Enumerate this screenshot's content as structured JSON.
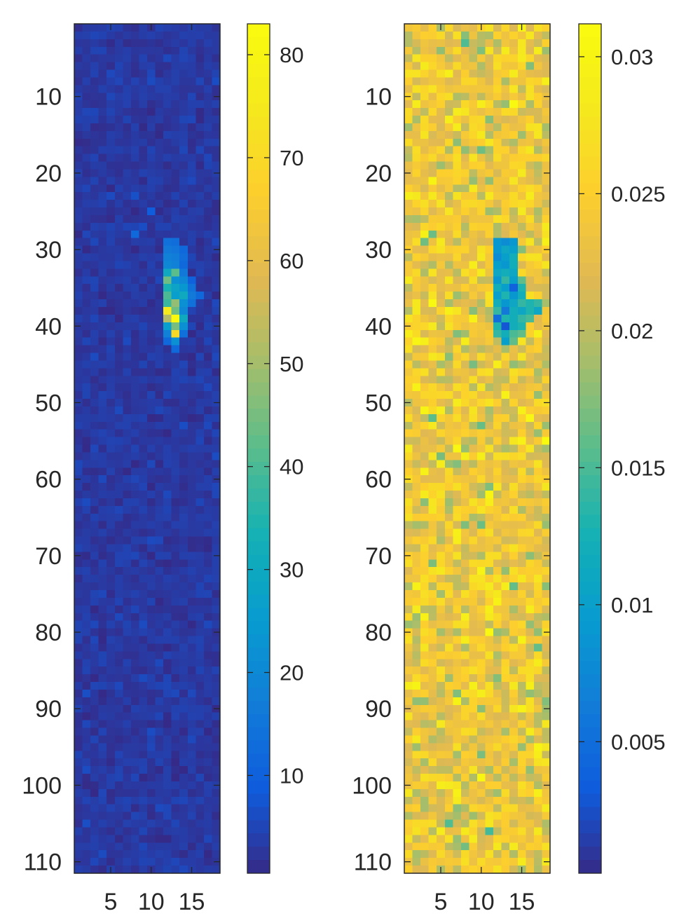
{
  "chart_data": [
    {
      "type": "heatmap",
      "title": "",
      "xlabel": "",
      "ylabel": "",
      "colormap": "parula",
      "xlim": [
        0.5,
        18.5
      ],
      "ylim": [
        0.5,
        111.5
      ],
      "y_reversed": true,
      "grid": false,
      "xticks": [
        "5",
        "10",
        "15"
      ],
      "yticks": [
        "10",
        "20",
        "30",
        "40",
        "50",
        "60",
        "70",
        "80",
        "90",
        "100",
        "110"
      ],
      "colorbar": {
        "position": "right",
        "clim": [
          0.5,
          83
        ],
        "ticks": [
          "10",
          "20",
          "30",
          "40",
          "50",
          "60",
          "70",
          "80"
        ]
      },
      "background": {
        "value": 3,
        "noise": 1.2
      },
      "hotspot": [
        {
          "x": 12,
          "y": 29,
          "v": 14
        },
        {
          "x": 13,
          "y": 29,
          "v": 13
        },
        {
          "x": 12,
          "y": 30,
          "v": 16
        },
        {
          "x": 13,
          "y": 30,
          "v": 15
        },
        {
          "x": 14,
          "y": 30,
          "v": 12
        },
        {
          "x": 12,
          "y": 31,
          "v": 18
        },
        {
          "x": 13,
          "y": 31,
          "v": 17
        },
        {
          "x": 14,
          "y": 31,
          "v": 13
        },
        {
          "x": 12,
          "y": 32,
          "v": 20
        },
        {
          "x": 13,
          "y": 32,
          "v": 18
        },
        {
          "x": 14,
          "y": 32,
          "v": 12
        },
        {
          "x": 12,
          "y": 33,
          "v": 30
        },
        {
          "x": 13,
          "y": 33,
          "v": 42
        },
        {
          "x": 14,
          "y": 33,
          "v": 16
        },
        {
          "x": 12,
          "y": 34,
          "v": 44
        },
        {
          "x": 13,
          "y": 34,
          "v": 22
        },
        {
          "x": 14,
          "y": 34,
          "v": 20
        },
        {
          "x": 15,
          "y": 34,
          "v": 10
        },
        {
          "x": 12,
          "y": 35,
          "v": 34
        },
        {
          "x": 13,
          "y": 35,
          "v": 28
        },
        {
          "x": 14,
          "y": 35,
          "v": 24
        },
        {
          "x": 15,
          "y": 35,
          "v": 14
        },
        {
          "x": 12,
          "y": 36,
          "v": 40
        },
        {
          "x": 13,
          "y": 36,
          "v": 26
        },
        {
          "x": 14,
          "y": 36,
          "v": 30
        },
        {
          "x": 15,
          "y": 36,
          "v": 16
        },
        {
          "x": 16,
          "y": 36,
          "v": 12
        },
        {
          "x": 12,
          "y": 37,
          "v": 38
        },
        {
          "x": 13,
          "y": 37,
          "v": 48
        },
        {
          "x": 14,
          "y": 37,
          "v": 22
        },
        {
          "x": 15,
          "y": 37,
          "v": 14
        },
        {
          "x": 12,
          "y": 38,
          "v": 75
        },
        {
          "x": 13,
          "y": 38,
          "v": 44
        },
        {
          "x": 14,
          "y": 38,
          "v": 20
        },
        {
          "x": 12,
          "y": 39,
          "v": 52
        },
        {
          "x": 13,
          "y": 39,
          "v": 82
        },
        {
          "x": 14,
          "y": 39,
          "v": 30
        },
        {
          "x": 12,
          "y": 40,
          "v": 26
        },
        {
          "x": 13,
          "y": 40,
          "v": 45
        },
        {
          "x": 14,
          "y": 40,
          "v": 22
        },
        {
          "x": 12,
          "y": 41,
          "v": 18
        },
        {
          "x": 13,
          "y": 41,
          "v": 70
        },
        {
          "x": 14,
          "y": 41,
          "v": 14
        },
        {
          "x": 12,
          "y": 42,
          "v": 12
        },
        {
          "x": 13,
          "y": 42,
          "v": 22
        },
        {
          "x": 13,
          "y": 43,
          "v": 12
        },
        {
          "x": 8,
          "y": 28,
          "v": 12
        },
        {
          "x": 10,
          "y": 25,
          "v": 9
        }
      ]
    },
    {
      "type": "heatmap",
      "title": "",
      "xlabel": "",
      "ylabel": "",
      "colormap": "parula",
      "xlim": [
        0.5,
        18.5
      ],
      "ylim": [
        0.5,
        111.5
      ],
      "y_reversed": true,
      "grid": false,
      "xticks": [
        "5",
        "10",
        "15"
      ],
      "yticks": [
        "10",
        "20",
        "30",
        "40",
        "50",
        "60",
        "70",
        "80",
        "90",
        "100",
        "110"
      ],
      "colorbar": {
        "position": "right",
        "clim": [
          0.0002,
          0.0312
        ],
        "ticks": [
          "0.005",
          "0.01",
          "0.015",
          "0.02",
          "0.025",
          "0.03"
        ]
      },
      "background": {
        "value": 0.0235,
        "noise": 0.0028
      },
      "hotspot": [
        {
          "x": 12,
          "y": 29,
          "v": 0.009
        },
        {
          "x": 13,
          "y": 29,
          "v": 0.008
        },
        {
          "x": 14,
          "y": 29,
          "v": 0.009
        },
        {
          "x": 12,
          "y": 30,
          "v": 0.009
        },
        {
          "x": 13,
          "y": 30,
          "v": 0.011
        },
        {
          "x": 14,
          "y": 30,
          "v": 0.01
        },
        {
          "x": 12,
          "y": 31,
          "v": 0.008
        },
        {
          "x": 13,
          "y": 31,
          "v": 0.01
        },
        {
          "x": 14,
          "y": 31,
          "v": 0.012
        },
        {
          "x": 12,
          "y": 32,
          "v": 0.01
        },
        {
          "x": 13,
          "y": 32,
          "v": 0.009
        },
        {
          "x": 14,
          "y": 32,
          "v": 0.012
        },
        {
          "x": 12,
          "y": 33,
          "v": 0.011
        },
        {
          "x": 13,
          "y": 33,
          "v": 0.012
        },
        {
          "x": 14,
          "y": 33,
          "v": 0.011
        },
        {
          "x": 12,
          "y": 34,
          "v": 0.009
        },
        {
          "x": 13,
          "y": 34,
          "v": 0.014
        },
        {
          "x": 14,
          "y": 34,
          "v": 0.01
        },
        {
          "x": 15,
          "y": 34,
          "v": 0.016
        },
        {
          "x": 12,
          "y": 35,
          "v": 0.012
        },
        {
          "x": 13,
          "y": 35,
          "v": 0.01
        },
        {
          "x": 14,
          "y": 35,
          "v": 0.004
        },
        {
          "x": 15,
          "y": 35,
          "v": 0.013
        },
        {
          "x": 12,
          "y": 36,
          "v": 0.01
        },
        {
          "x": 13,
          "y": 36,
          "v": 0.013
        },
        {
          "x": 14,
          "y": 36,
          "v": 0.009
        },
        {
          "x": 15,
          "y": 36,
          "v": 0.012
        },
        {
          "x": 12,
          "y": 37,
          "v": 0.012
        },
        {
          "x": 13,
          "y": 37,
          "v": 0.009
        },
        {
          "x": 14,
          "y": 37,
          "v": 0.011
        },
        {
          "x": 15,
          "y": 37,
          "v": 0.014
        },
        {
          "x": 16,
          "y": 37,
          "v": 0.013
        },
        {
          "x": 17,
          "y": 37,
          "v": 0.014
        },
        {
          "x": 12,
          "y": 38,
          "v": 0.014
        },
        {
          "x": 13,
          "y": 38,
          "v": 0.006
        },
        {
          "x": 14,
          "y": 38,
          "v": 0.012
        },
        {
          "x": 15,
          "y": 38,
          "v": 0.011
        },
        {
          "x": 16,
          "y": 38,
          "v": 0.013
        },
        {
          "x": 17,
          "y": 38,
          "v": 0.011
        },
        {
          "x": 12,
          "y": 39,
          "v": 0.005
        },
        {
          "x": 13,
          "y": 39,
          "v": 0.013
        },
        {
          "x": 14,
          "y": 39,
          "v": 0.012
        },
        {
          "x": 15,
          "y": 39,
          "v": 0.014
        },
        {
          "x": 16,
          "y": 39,
          "v": 0.015
        },
        {
          "x": 12,
          "y": 40,
          "v": 0.013
        },
        {
          "x": 13,
          "y": 40,
          "v": 0.003
        },
        {
          "x": 14,
          "y": 40,
          "v": 0.012
        },
        {
          "x": 15,
          "y": 40,
          "v": 0.013
        },
        {
          "x": 12,
          "y": 41,
          "v": 0.014
        },
        {
          "x": 13,
          "y": 41,
          "v": 0.012
        },
        {
          "x": 14,
          "y": 41,
          "v": 0.015
        },
        {
          "x": 15,
          "y": 41,
          "v": 0.016
        },
        {
          "x": 13,
          "y": 42,
          "v": 0.01
        },
        {
          "x": 14,
          "y": 42,
          "v": 0.016
        }
      ]
    }
  ]
}
